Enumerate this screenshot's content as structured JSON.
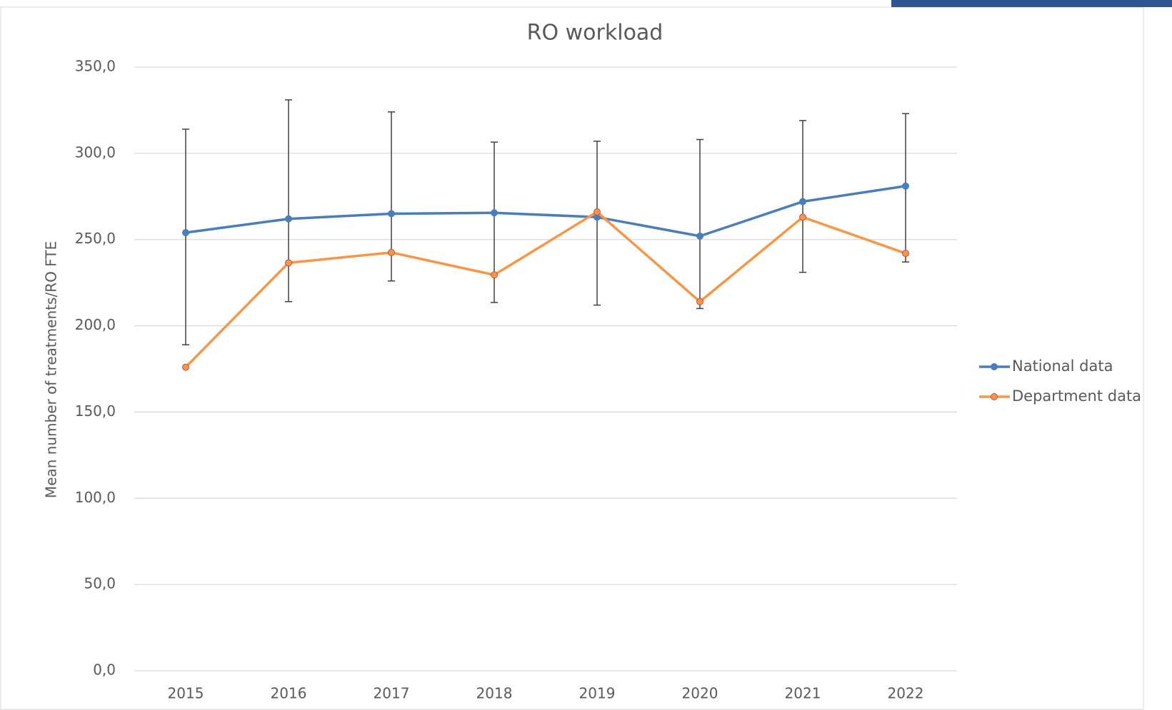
{
  "chart_data": {
    "type": "line",
    "title": "RO workload",
    "y_label": "Mean number of treatments/RO FTE",
    "categories": [
      "2015",
      "2016",
      "2017",
      "2018",
      "2019",
      "2020",
      "2021",
      "2022"
    ],
    "series": [
      {
        "name": "National data",
        "color": "#4a7ebb",
        "values": [
          254,
          262,
          265,
          265.5,
          263,
          252,
          272,
          281
        ],
        "error_plus": [
          60,
          69,
          59,
          41,
          44,
          56,
          47,
          42
        ],
        "error_minus": [
          65,
          48,
          39,
          52,
          51,
          42,
          41,
          44
        ]
      },
      {
        "name": "Department data",
        "color": "#f79646",
        "values": [
          176,
          236.5,
          242.5,
          229.5,
          266,
          214,
          263,
          242
        ]
      }
    ],
    "ylim": [
      0,
      350
    ],
    "yticks": [
      {
        "value": 0,
        "label": "0,0"
      },
      {
        "value": 50,
        "label": "50,0"
      },
      {
        "value": 100,
        "label": "100,0"
      },
      {
        "value": 150,
        "label": "150,0"
      },
      {
        "value": 200,
        "label": "200,0"
      },
      {
        "value": 250,
        "label": "250,0"
      },
      {
        "value": 300,
        "label": "300,0"
      },
      {
        "value": 350,
        "label": "350,0"
      }
    ],
    "grid": true,
    "legend": "right"
  }
}
